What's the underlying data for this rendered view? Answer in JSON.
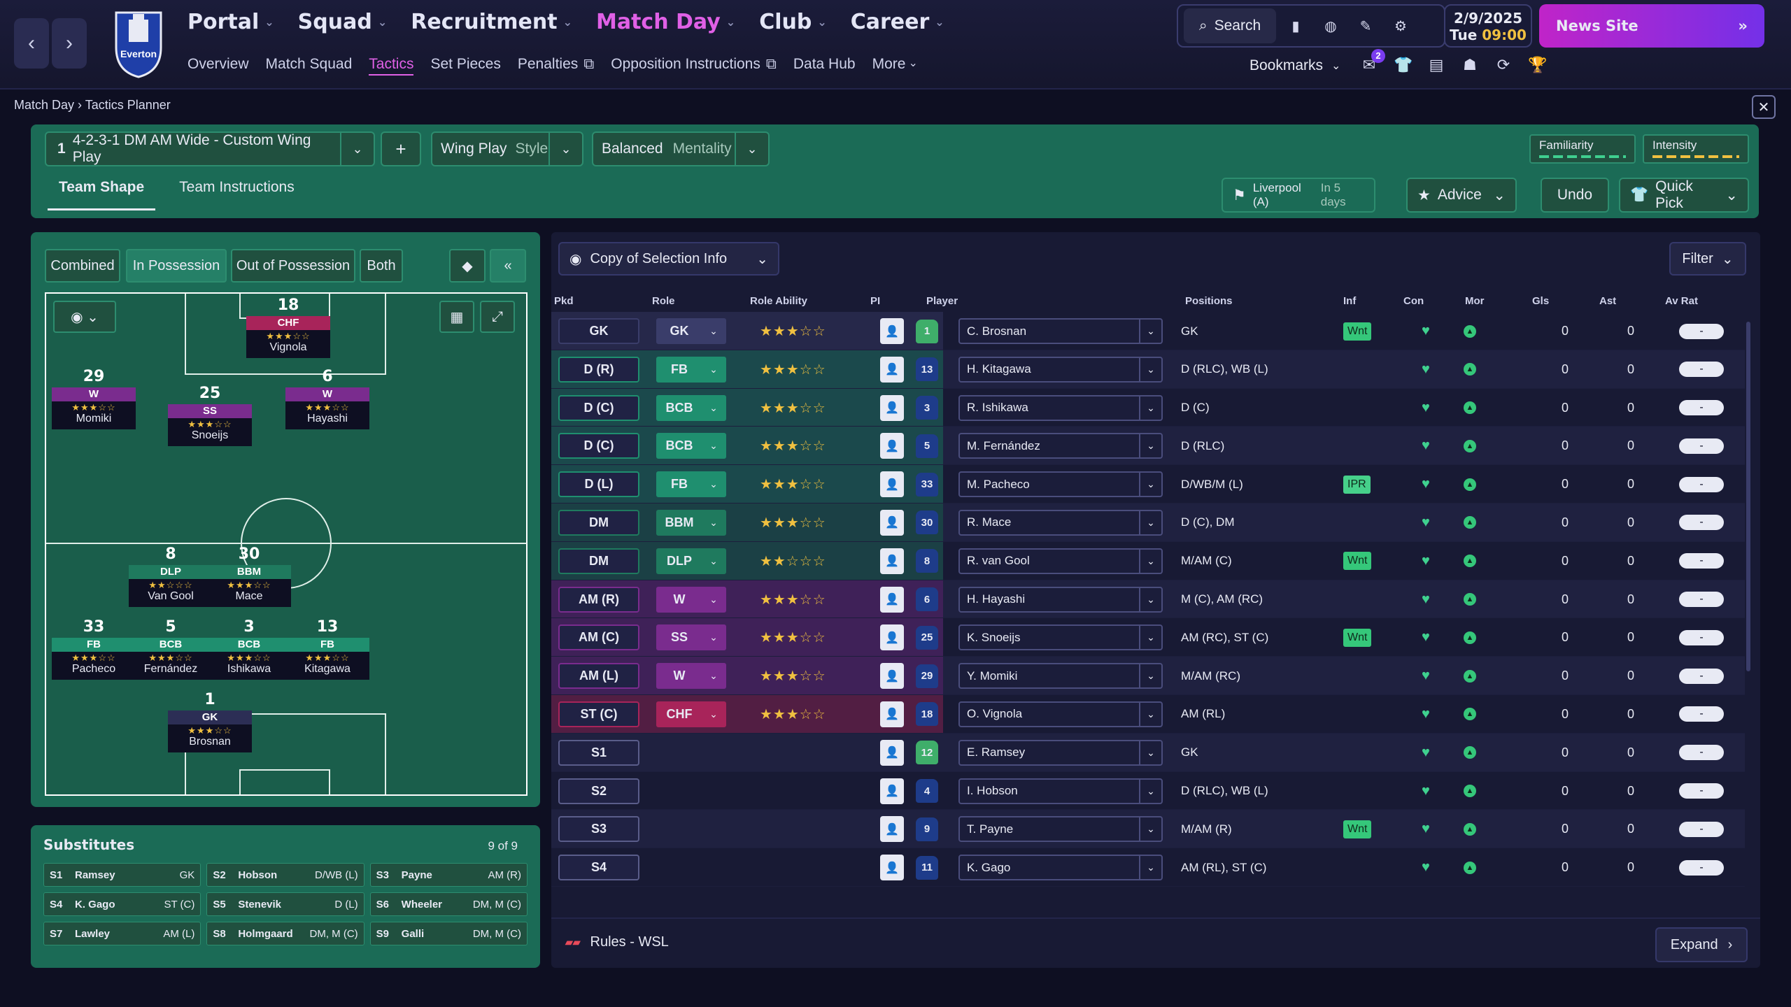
{
  "nav": {
    "main": [
      {
        "label": "Portal",
        "active": false
      },
      {
        "label": "Squad",
        "active": false
      },
      {
        "label": "Recruitment",
        "active": false
      },
      {
        "label": "Match Day",
        "active": true
      },
      {
        "label": "Club",
        "active": false
      },
      {
        "label": "Career",
        "active": false
      }
    ],
    "sub": [
      "Overview",
      "Match Squad",
      "Tactics",
      "Set Pieces",
      "Penalties",
      "Opposition Instructions",
      "Data Hub",
      "More"
    ],
    "sub_active": "Tactics",
    "crest_text": "Everton",
    "search_label": "Search",
    "date": "2/9/2025",
    "day": "Tue",
    "time": "09:00",
    "news_label": "News Site",
    "bookmarks_label": "Bookmarks",
    "notif_count": "2"
  },
  "breadcrumb": {
    "a": "Match Day",
    "b": "Tactics Planner"
  },
  "tactic": {
    "number": "1",
    "name": "4-2-3-1 DM AM Wide - Custom Wing Play",
    "style_value": "Wing Play",
    "style_label": "Style",
    "mentality_value": "Balanced",
    "mentality_label": "Mentality",
    "familiarity": "Familiarity",
    "intensity": "Intensity",
    "tab_shape": "Team Shape",
    "tab_instr": "Team Instructions",
    "next_match": "Liverpool (A)",
    "next_when": "In 5 days",
    "advice": "Advice",
    "undo": "Undo",
    "quick_pick": "Quick Pick"
  },
  "pitch": {
    "modes": [
      "Combined",
      "In Possession",
      "Out of Possession",
      "Both"
    ],
    "active_mode": "In Possession",
    "players": [
      {
        "num": "18",
        "role": "CHF",
        "stars": "★★★☆☆",
        "name": "Vignola",
        "cls": "chf"
      },
      {
        "num": "29",
        "role": "W",
        "stars": "★★★☆☆",
        "name": "Momiki",
        "cls": "w"
      },
      {
        "num": "25",
        "role": "SS",
        "stars": "★★★☆☆",
        "name": "Snoeijs",
        "cls": "ss"
      },
      {
        "num": "6",
        "role": "W",
        "stars": "★★★☆☆",
        "name": "Hayashi",
        "cls": "w"
      },
      {
        "num": "8",
        "role": "DLP",
        "stars": "★★☆☆☆",
        "name": "Van Gool",
        "cls": "dm"
      },
      {
        "num": "30",
        "role": "BBM",
        "stars": "★★★☆☆",
        "name": "Mace",
        "cls": "dm"
      },
      {
        "num": "33",
        "role": "FB",
        "stars": "★★★☆☆",
        "name": "Pacheco",
        "cls": "d"
      },
      {
        "num": "5",
        "role": "BCB",
        "stars": "★★★☆☆",
        "name": "Fernández",
        "cls": "d"
      },
      {
        "num": "3",
        "role": "BCB",
        "stars": "★★★☆☆",
        "name": "Ishikawa",
        "cls": "d"
      },
      {
        "num": "13",
        "role": "FB",
        "stars": "★★★☆☆",
        "name": "Kitagawa",
        "cls": "d"
      },
      {
        "num": "1",
        "role": "GK",
        "stars": "★★★☆☆",
        "name": "Brosnan",
        "cls": "gk"
      }
    ]
  },
  "subs": {
    "title": "Substitutes",
    "count": "9 of 9",
    "items": [
      {
        "slot": "S1",
        "name": "Ramsey",
        "pos": "GK"
      },
      {
        "slot": "S2",
        "name": "Hobson",
        "pos": "D/WB (L)"
      },
      {
        "slot": "S3",
        "name": "Payne",
        "pos": "AM (R)"
      },
      {
        "slot": "S4",
        "name": "K. Gago",
        "pos": "ST (C)"
      },
      {
        "slot": "S5",
        "name": "Stenevik",
        "pos": "D (L)"
      },
      {
        "slot": "S6",
        "name": "Wheeler",
        "pos": "DM, M (C)"
      },
      {
        "slot": "S7",
        "name": "Lawley",
        "pos": "AM (L)"
      },
      {
        "slot": "S8",
        "name": "Holmgaard",
        "pos": "DM, M (C)"
      },
      {
        "slot": "S9",
        "name": "Galli",
        "pos": "DM, M (C)"
      }
    ]
  },
  "selection": {
    "header": "Copy of Selection Info",
    "filter": "Filter",
    "columns": [
      "Pkd",
      "Role",
      "Role Ability",
      "PI",
      "Player",
      "Positions",
      "Inf",
      "Con",
      "Mor",
      "Gls",
      "Ast",
      "Av Rat"
    ],
    "rows": [
      {
        "pkd": "GK",
        "role": "GK",
        "stars": "★★★☆☆",
        "num": "1",
        "gk": true,
        "player": "C. Brosnan",
        "pos": "GK",
        "inf": "Wnt",
        "gls": "0",
        "ast": "0",
        "rat": "-",
        "color": "#3a3d6a"
      },
      {
        "pkd": "D (R)",
        "role": "FB",
        "stars": "★★★☆☆",
        "num": "13",
        "player": "H. Kitagawa",
        "pos": "D (RLC), WB (L)",
        "inf": "",
        "gls": "0",
        "ast": "0",
        "rat": "-",
        "color": "#1f8f6f"
      },
      {
        "pkd": "D (C)",
        "role": "BCB",
        "stars": "★★★☆☆",
        "num": "3",
        "player": "R. Ishikawa",
        "pos": "D (C)",
        "inf": "",
        "gls": "0",
        "ast": "0",
        "rat": "-",
        "color": "#1f8f6f"
      },
      {
        "pkd": "D (C)",
        "role": "BCB",
        "stars": "★★★☆☆",
        "num": "5",
        "player": "M. Fernández",
        "pos": "D (RLC)",
        "inf": "",
        "gls": "0",
        "ast": "0",
        "rat": "-",
        "color": "#1f8f6f"
      },
      {
        "pkd": "D (L)",
        "role": "FB",
        "stars": "★★★☆☆",
        "num": "33",
        "player": "M. Pacheco",
        "pos": "D/WB/M (L)",
        "inf": "IPR",
        "gls": "0",
        "ast": "0",
        "rat": "-",
        "color": "#1f8f6f"
      },
      {
        "pkd": "DM",
        "role": "BBM",
        "stars": "★★★☆☆",
        "num": "30",
        "player": "R. Mace",
        "pos": "D (C), DM",
        "inf": "",
        "gls": "0",
        "ast": "0",
        "rat": "-",
        "color": "#1f7a5e"
      },
      {
        "pkd": "DM",
        "role": "DLP",
        "stars": "★★☆☆☆",
        "num": "8",
        "player": "R. van Gool",
        "pos": "M/AM (C)",
        "inf": "Wnt",
        "gls": "0",
        "ast": "0",
        "rat": "-",
        "color": "#1f7a5e"
      },
      {
        "pkd": "AM (R)",
        "role": "W",
        "stars": "★★★☆☆",
        "num": "6",
        "player": "H. Hayashi",
        "pos": "M (C), AM (RC)",
        "inf": "",
        "gls": "0",
        "ast": "0",
        "rat": "-",
        "color": "#7a2c8e"
      },
      {
        "pkd": "AM (C)",
        "role": "SS",
        "stars": "★★★☆☆",
        "num": "25",
        "player": "K. Snoeijs",
        "pos": "AM (RC), ST (C)",
        "inf": "Wnt",
        "gls": "0",
        "ast": "0",
        "rat": "-",
        "color": "#7a2c8e"
      },
      {
        "pkd": "AM (L)",
        "role": "W",
        "stars": "★★★☆☆",
        "num": "29",
        "player": "Y. Momiki",
        "pos": "M/AM (RC)",
        "inf": "",
        "gls": "0",
        "ast": "0",
        "rat": "-",
        "color": "#7a2c8e"
      },
      {
        "pkd": "ST (C)",
        "role": "CHF",
        "stars": "★★★☆☆",
        "num": "18",
        "player": "O. Vignola",
        "pos": "AM (RL)",
        "inf": "",
        "gls": "0",
        "ast": "0",
        "rat": "-",
        "color": "#a8245a"
      },
      {
        "pkd": "S1",
        "role": "",
        "stars": "",
        "num": "12",
        "gk": true,
        "player": "E. Ramsey",
        "pos": "GK",
        "inf": "",
        "gls": "0",
        "ast": "0",
        "rat": "-",
        "color": ""
      },
      {
        "pkd": "S2",
        "role": "",
        "stars": "",
        "num": "4",
        "player": "I. Hobson",
        "pos": "D (RLC), WB (L)",
        "inf": "",
        "gls": "0",
        "ast": "0",
        "rat": "-",
        "color": ""
      },
      {
        "pkd": "S3",
        "role": "",
        "stars": "",
        "num": "9",
        "player": "T. Payne",
        "pos": "M/AM (R)",
        "inf": "Wnt",
        "gls": "0",
        "ast": "0",
        "rat": "-",
        "color": ""
      },
      {
        "pkd": "S4",
        "role": "",
        "stars": "",
        "num": "11",
        "player": "K. Gago",
        "pos": "AM (RL), ST (C)",
        "inf": "",
        "gls": "0",
        "ast": "0",
        "rat": "-",
        "color": ""
      }
    ],
    "rules": "Rules - WSL",
    "expand": "Expand"
  }
}
